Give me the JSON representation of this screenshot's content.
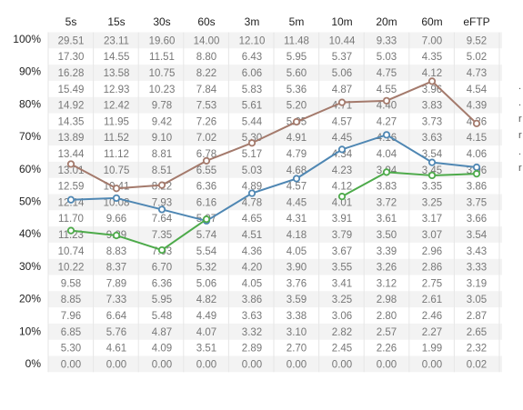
{
  "chart_data": {
    "type": "table",
    "columns": [
      "5s",
      "15s",
      "30s",
      "60s",
      "3m",
      "5m",
      "10m",
      "20m",
      "60m",
      "eFTP"
    ],
    "y_ticks": [
      "100%",
      "90%",
      "80%",
      "70%",
      "60%",
      "50%",
      "40%",
      "30%",
      "20%",
      "10%",
      "0%"
    ],
    "ylim": [
      0,
      100
    ],
    "rows": [
      [
        "29.51",
        "23.11",
        "19.60",
        "14.00",
        "12.10",
        "11.48",
        "10.44",
        "9.33",
        "7.00",
        "9.52"
      ],
      [
        "17.30",
        "14.55",
        "11.51",
        "8.80",
        "6.43",
        "5.95",
        "5.37",
        "5.03",
        "4.35",
        "5.02"
      ],
      [
        "16.28",
        "13.58",
        "10.75",
        "8.22",
        "6.06",
        "5.60",
        "5.06",
        "4.75",
        "4.12",
        "4.73"
      ],
      [
        "15.49",
        "12.93",
        "10.23",
        "7.84",
        "5.83",
        "5.36",
        "4.87",
        "4.55",
        "3.96",
        "4.54"
      ],
      [
        "14.92",
        "12.42",
        "9.78",
        "7.53",
        "5.61",
        "5.20",
        "4.71",
        "4.40",
        "3.83",
        "4.39"
      ],
      [
        "14.35",
        "11.95",
        "9.42",
        "7.26",
        "5.44",
        "5.05",
        "4.57",
        "4.27",
        "3.73",
        "4.26"
      ],
      [
        "13.89",
        "11.52",
        "9.10",
        "7.02",
        "5.30",
        "4.91",
        "4.45",
        "4.16",
        "3.63",
        "4.15"
      ],
      [
        "13.44",
        "11.12",
        "8.81",
        "6.78",
        "5.17",
        "4.79",
        "4.34",
        "4.04",
        "3.54",
        "4.06"
      ],
      [
        "13.01",
        "10.75",
        "8.51",
        "6.55",
        "5.03",
        "4.68",
        "4.23",
        "3.94",
        "3.45",
        "3.96"
      ],
      [
        "12.59",
        "10.41",
        "8.22",
        "6.36",
        "4.89",
        "4.57",
        "4.12",
        "3.83",
        "3.35",
        "3.86"
      ],
      [
        "12.14",
        "10.08",
        "7.93",
        "6.16",
        "4.78",
        "4.45",
        "4.01",
        "3.72",
        "3.25",
        "3.75"
      ],
      [
        "11.70",
        "9.66",
        "7.64",
        "5.97",
        "4.65",
        "4.31",
        "3.91",
        "3.61",
        "3.17",
        "3.66"
      ],
      [
        "11.23",
        "9.29",
        "7.35",
        "5.74",
        "4.51",
        "4.18",
        "3.79",
        "3.50",
        "3.07",
        "3.54"
      ],
      [
        "10.74",
        "8.83",
        "7.03",
        "5.54",
        "4.36",
        "4.05",
        "3.67",
        "3.39",
        "2.96",
        "3.43"
      ],
      [
        "10.22",
        "8.37",
        "6.70",
        "5.32",
        "4.20",
        "3.90",
        "3.55",
        "3.26",
        "2.86",
        "3.33"
      ],
      [
        "9.58",
        "7.89",
        "6.36",
        "5.06",
        "4.05",
        "3.76",
        "3.41",
        "3.12",
        "2.75",
        "3.19"
      ],
      [
        "8.85",
        "7.33",
        "5.95",
        "4.82",
        "3.86",
        "3.59",
        "3.25",
        "2.98",
        "2.61",
        "3.05"
      ],
      [
        "7.96",
        "6.64",
        "5.48",
        "4.49",
        "3.63",
        "3.38",
        "3.06",
        "2.80",
        "2.46",
        "2.87"
      ],
      [
        "6.85",
        "5.76",
        "4.87",
        "4.07",
        "3.32",
        "3.10",
        "2.82",
        "2.57",
        "2.27",
        "2.65"
      ],
      [
        "5.30",
        "4.61",
        "4.09",
        "3.51",
        "2.89",
        "2.70",
        "2.45",
        "2.26",
        "1.99",
        "2.32"
      ],
      [
        "0.00",
        "0.00",
        "0.00",
        "0.00",
        "0.00",
        "0.00",
        "0.00",
        "0.00",
        "0.00",
        "0.02"
      ]
    ],
    "series": [
      {
        "color": "#a47a6c",
        "values": [
          61.5,
          54,
          55,
          62.5,
          68,
          74.5,
          80.5,
          81,
          87,
          74
        ]
      },
      {
        "color": "#4f87b3",
        "values": [
          50.5,
          51,
          47.5,
          44,
          52.5,
          57,
          66,
          70.5,
          62,
          60.5
        ]
      },
      {
        "color": "#4daa4a",
        "values": [
          41,
          39.5,
          35,
          44.5,
          null,
          null,
          51.5,
          59,
          58,
          58.5
        ]
      }
    ],
    "stripe_color": "#f3f3f3",
    "edge_marks": [
      ".",
      ".",
      "r",
      "r",
      ".",
      "r"
    ],
    "legend": "none",
    "grid": true
  }
}
